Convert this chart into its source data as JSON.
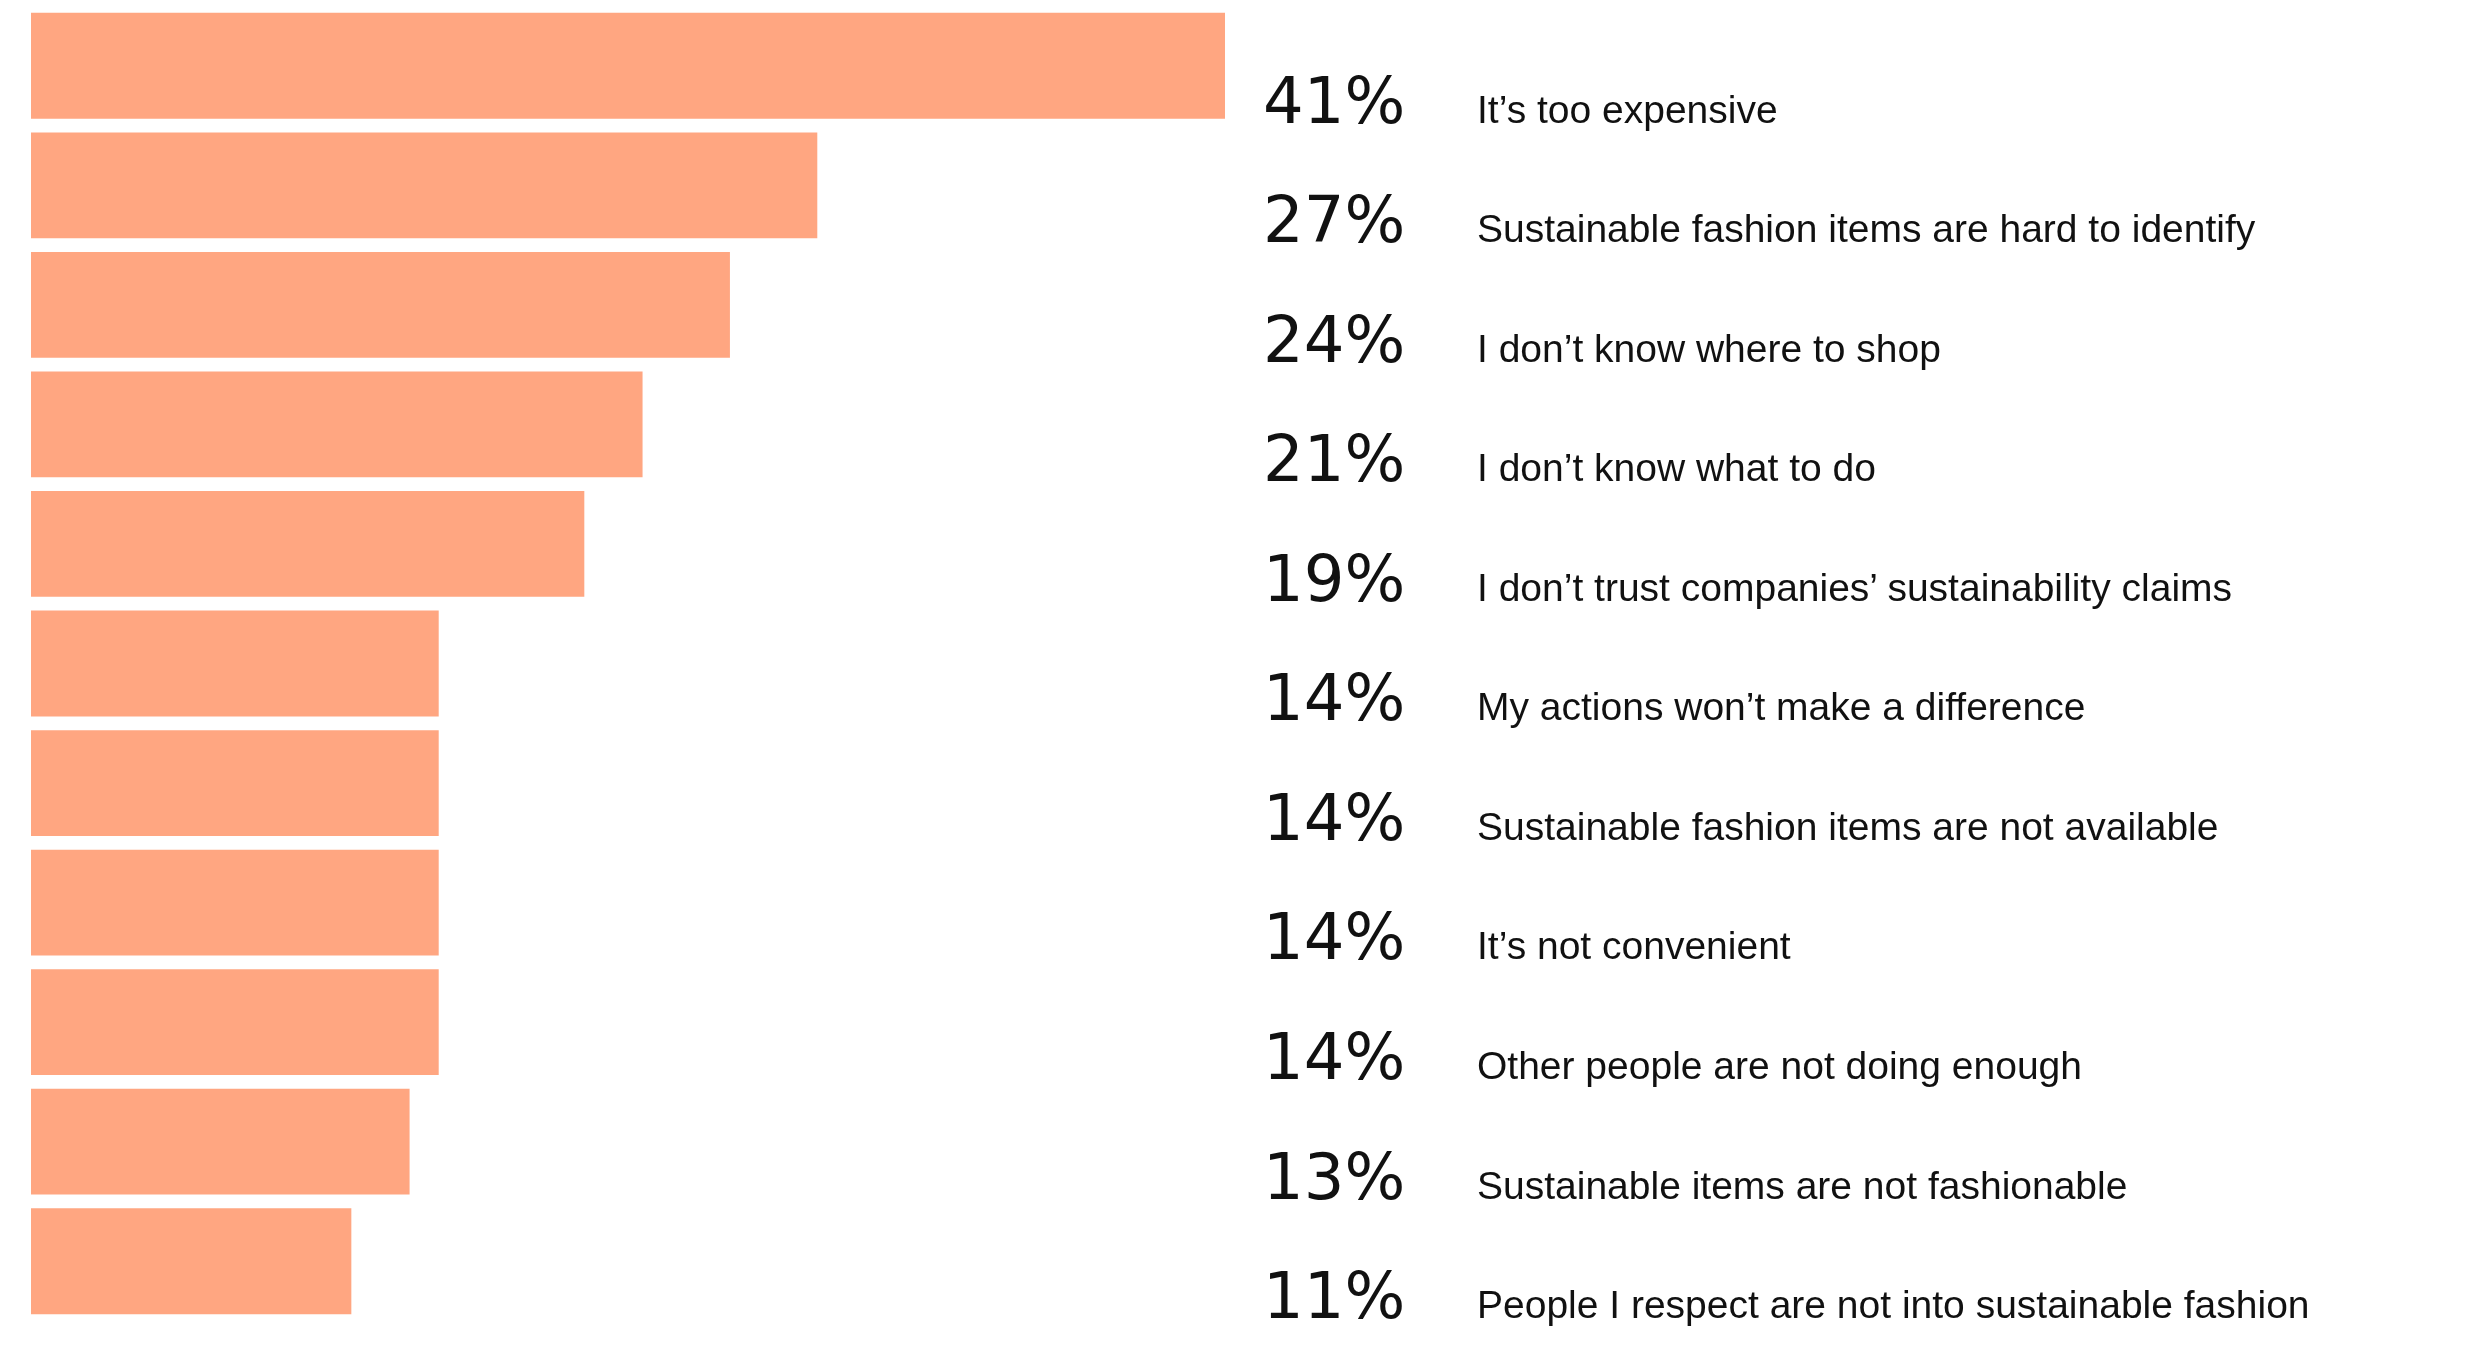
{
  "chart_data": {
    "type": "bar",
    "orientation": "horizontal",
    "color": "#ffa681",
    "categories": [
      "It’s too expensive",
      "Sustainable fashion items are hard to identify",
      "I don’t know where to shop",
      "I don’t know what to do",
      "I don’t trust companies’ sustainability claims",
      "My actions won’t make a difference",
      "Sustainable fashion items are not available",
      "It’s not convenient",
      "Other people are not doing enough",
      "Sustainable items are not fashionable",
      "People I respect are not into sustainable fashion"
    ],
    "values": [
      41,
      27,
      24,
      21,
      19,
      14,
      14,
      14,
      14,
      13,
      11
    ],
    "value_labels": [
      "41%",
      "27%",
      "24%",
      "21%",
      "19%",
      "14%",
      "14%",
      "14%",
      "14%",
      "13%",
      "11%"
    ],
    "legend": false
  }
}
